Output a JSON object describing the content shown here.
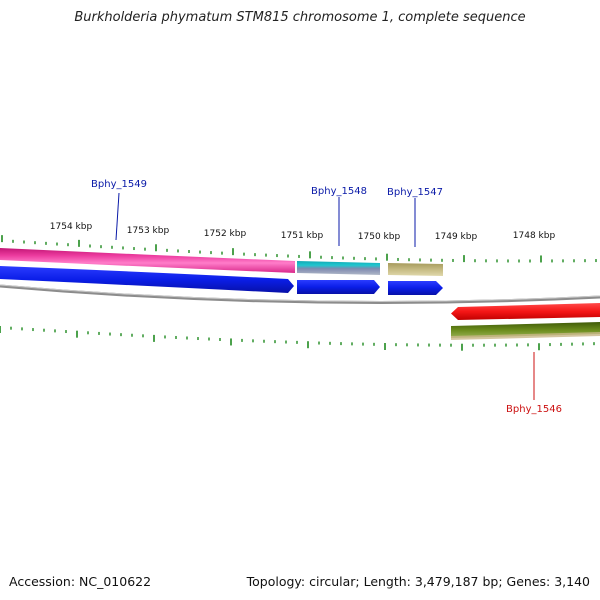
{
  "title": "Burkholderia phymatum STM815 chromosome 1, complete sequence",
  "accession_label": "Accession: NC_010622",
  "topology_label": "Topology: circular; Length: 3,479,187 bp; Genes: 3,140",
  "colors": {
    "tick": "#1f8a1f",
    "backbone": "#8c8c8c",
    "forward_label": "#0a1aa8",
    "reverse_label": "#cc1111",
    "magenta": "#ec3b9e",
    "blue": "#0b1ee8",
    "cyan": "#1fc6cf",
    "khaki": "#c6bb83",
    "red": "#f51616",
    "olive": "#5d7d14"
  },
  "ruler_labels": [
    "1754 kbp",
    "1753 kbp",
    "1752 kbp",
    "1751 kbp",
    "1750 kbp",
    "1749 kbp",
    "1748 kbp"
  ],
  "genes": [
    {
      "name": "Bphy_1549",
      "strand": "forward"
    },
    {
      "name": "Bphy_1548",
      "strand": "forward"
    },
    {
      "name": "Bphy_1547",
      "strand": "forward"
    },
    {
      "name": "Bphy_1546",
      "strand": "reverse"
    }
  ]
}
